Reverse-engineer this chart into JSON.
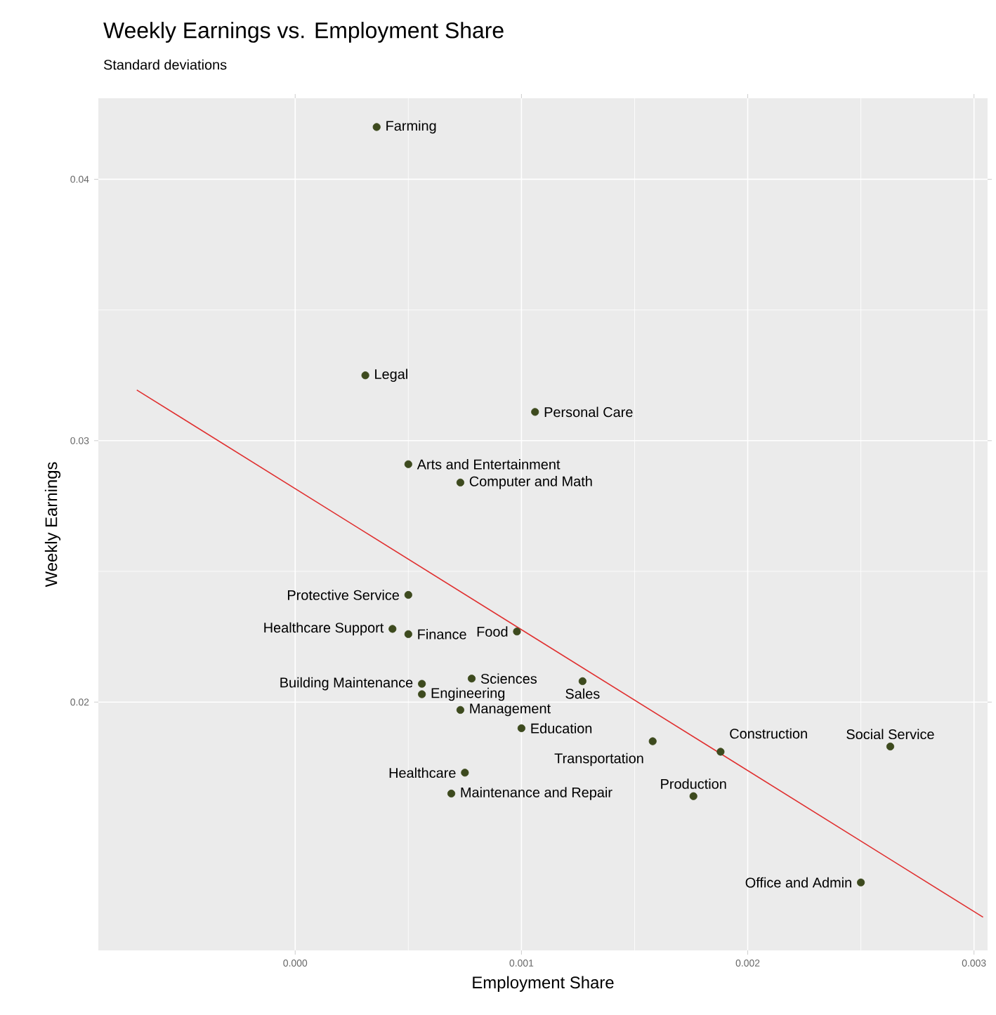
{
  "chart_data": {
    "type": "scatter",
    "title": "Weekly Earnings vs. Employment Share",
    "subtitle": "Standard deviations",
    "xlabel": "Employment Share",
    "ylabel": "Weekly Earnings",
    "xlim": [
      -0.00087,
      0.00306
    ],
    "ylim": [
      0.0105,
      0.0431
    ],
    "xticks": [
      {
        "value": 0,
        "label": "0.000"
      },
      {
        "value": 0.001,
        "label": "0.001"
      },
      {
        "value": 0.002,
        "label": "0.002"
      },
      {
        "value": 0.003,
        "label": "0.003"
      }
    ],
    "yticks": [
      {
        "value": 0.02,
        "label": "0.02"
      },
      {
        "value": 0.03,
        "label": "0.03"
      },
      {
        "value": 0.04,
        "label": "0.04"
      }
    ],
    "grid": true,
    "marker": "circle",
    "series": [
      {
        "type": "scatter",
        "color": "#3d4a1e",
        "x": [
          0.00036,
          0.00031,
          0.00106,
          0.0005,
          0.00073,
          0.0005,
          0.00043,
          0.0005,
          0.00098,
          0.00078,
          0.00056,
          0.00127,
          0.00056,
          0.00073,
          0.001,
          0.00158,
          0.00188,
          0.00263,
          0.00075,
          0.00069,
          0.00176,
          0.0025
        ],
        "values": [
          0.042,
          0.0325,
          0.0311,
          0.0291,
          0.0284,
          0.0241,
          0.0228,
          0.0226,
          0.0227,
          0.0209,
          0.0207,
          0.0208,
          0.0203,
          0.0197,
          0.019,
          0.0185,
          0.0181,
          0.0183,
          0.0173,
          0.0165,
          0.0164,
          0.0131
        ]
      },
      {
        "type": "line",
        "marker": "none",
        "color": "#e03030",
        "x": [
          -0.0007,
          0.00304
        ],
        "values": [
          0.03194,
          0.01177
        ]
      }
    ],
    "annotations": [
      {
        "text": "Farming",
        "x": 0.00036,
        "y": 0.042
      },
      {
        "text": "Legal",
        "x": 0.00031,
        "y": 0.0325
      },
      {
        "text": "Personal Care",
        "x": 0.00106,
        "y": 0.0311
      },
      {
        "text": "Arts and Entertainment",
        "x": 0.0005,
        "y": 0.0291
      },
      {
        "text": "Computer and Math",
        "x": 0.00073,
        "y": 0.0284
      },
      {
        "text": "Protective Service",
        "x": 0.0005,
        "y": 0.0241
      },
      {
        "text": "Healthcare Support",
        "x": 0.00043,
        "y": 0.0228
      },
      {
        "text": "Finance",
        "x": 0.0005,
        "y": 0.0226
      },
      {
        "text": "Food",
        "x": 0.00098,
        "y": 0.0227
      },
      {
        "text": "Sciences",
        "x": 0.00078,
        "y": 0.0209
      },
      {
        "text": "Building Maintenance",
        "x": 0.00056,
        "y": 0.0207
      },
      {
        "text": "Sales",
        "x": 0.00127,
        "y": 0.0208
      },
      {
        "text": "Engineering",
        "x": 0.00056,
        "y": 0.0203
      },
      {
        "text": "Management",
        "x": 0.00073,
        "y": 0.0197
      },
      {
        "text": "Education",
        "x": 0.001,
        "y": 0.019
      },
      {
        "text": "Transportation",
        "x": 0.00158,
        "y": 0.0185
      },
      {
        "text": "Construction",
        "x": 0.00188,
        "y": 0.0181
      },
      {
        "text": "Social Service",
        "x": 0.00263,
        "y": 0.0183
      },
      {
        "text": "Healthcare",
        "x": 0.00075,
        "y": 0.0173
      },
      {
        "text": "Maintenance and Repair",
        "x": 0.00069,
        "y": 0.0165
      },
      {
        "text": "Production",
        "x": 0.00176,
        "y": 0.0164
      },
      {
        "text": "Office and Admin",
        "x": 0.0025,
        "y": 0.0131
      }
    ]
  }
}
